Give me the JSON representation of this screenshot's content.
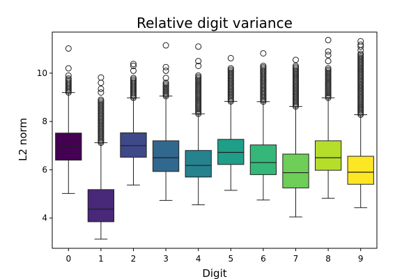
{
  "chart_data": {
    "type": "box",
    "title": "Relative digit variance",
    "xlabel": "Digit",
    "ylabel": "L2 norm",
    "categories": [
      "0",
      "1",
      "2",
      "3",
      "4",
      "5",
      "6",
      "7",
      "8",
      "9"
    ],
    "yticks": [
      4,
      6,
      8,
      10
    ],
    "ylim": [
      2.75,
      11.7
    ],
    "grid": false,
    "colors": [
      "#440154",
      "#482878",
      "#3e4989",
      "#31688e",
      "#26828e",
      "#1f9e89",
      "#35b779",
      "#6ece58",
      "#b5de2b",
      "#fde725"
    ],
    "series": [
      {
        "category": "0",
        "whisker_low": 5.02,
        "q1": 6.4,
        "median": 6.95,
        "q3": 7.52,
        "whisker_high": 9.2,
        "outlier_range": [
          9.2,
          9.78
        ],
        "outliers": [
          9.9,
          10.2,
          11.02
        ]
      },
      {
        "category": "1",
        "whisker_low": 3.13,
        "q1": 3.85,
        "median": 4.37,
        "q3": 5.18,
        "whisker_high": 7.12,
        "outlier_range": [
          7.12,
          8.9
        ],
        "outliers": [
          9.2,
          9.35,
          9.6,
          9.82
        ]
      },
      {
        "category": "2",
        "whisker_low": 5.37,
        "q1": 6.52,
        "median": 7.0,
        "q3": 7.53,
        "whisker_high": 8.98,
        "outlier_range": [
          8.98,
          9.8
        ],
        "outliers": [
          10.1,
          10.3,
          10.38
        ]
      },
      {
        "category": "3",
        "whisker_low": 4.73,
        "q1": 5.93,
        "median": 6.5,
        "q3": 7.2,
        "whisker_high": 9.05,
        "outlier_range": [
          9.05,
          9.6
        ],
        "outliers": [
          9.8,
          10.1,
          10.25,
          11.15
        ]
      },
      {
        "category": "4",
        "whisker_low": 4.55,
        "q1": 5.7,
        "median": 6.18,
        "q3": 6.8,
        "whisker_high": 8.32,
        "outlier_range": [
          8.32,
          9.9
        ],
        "outliers": [
          10.3,
          10.5,
          11.1
        ]
      },
      {
        "category": "5",
        "whisker_low": 5.15,
        "q1": 6.22,
        "median": 6.72,
        "q3": 7.26,
        "whisker_high": 8.83,
        "outlier_range": [
          8.83,
          10.2
        ],
        "outliers": [
          10.62
        ]
      },
      {
        "category": "6",
        "whisker_low": 4.75,
        "q1": 5.8,
        "median": 6.3,
        "q3": 7.03,
        "whisker_high": 8.82,
        "outlier_range": [
          8.82,
          10.3
        ],
        "outliers": [
          10.82
        ]
      },
      {
        "category": "7",
        "whisker_low": 4.05,
        "q1": 5.25,
        "median": 5.88,
        "q3": 6.65,
        "whisker_high": 8.62,
        "outlier_range": [
          8.62,
          10.3
        ],
        "outliers": [
          10.55
        ]
      },
      {
        "category": "8",
        "whisker_low": 4.82,
        "q1": 5.98,
        "median": 6.5,
        "q3": 7.2,
        "whisker_high": 8.98,
        "outlier_range": [
          8.98,
          10.2
        ],
        "outliers": [
          10.5,
          10.75,
          10.9,
          11.37
        ]
      },
      {
        "category": "9",
        "whisker_low": 4.43,
        "q1": 5.4,
        "median": 5.9,
        "q3": 6.56,
        "whisker_high": 8.28,
        "outlier_range": [
          8.28,
          10.8
        ],
        "outliers": [
          10.95,
          11.1,
          11.18,
          11.32
        ]
      }
    ]
  }
}
